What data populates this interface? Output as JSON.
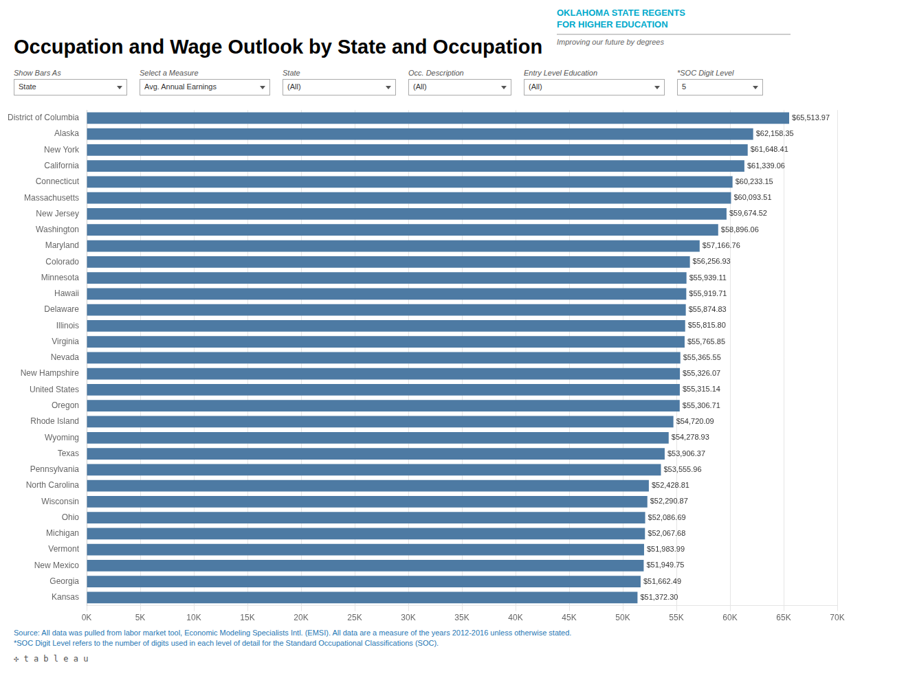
{
  "chart_data": {
    "type": "bar",
    "orientation": "horizontal",
    "title": "Occupation and Wage Outlook by State and Occupation",
    "categories": [
      "District of Columbia",
      "Alaska",
      "New York",
      "California",
      "Connecticut",
      "Massachusetts",
      "New Jersey",
      "Washington",
      "Maryland",
      "Colorado",
      "Minnesota",
      "Hawaii",
      "Delaware",
      "Illinois",
      "Virginia",
      "Nevada",
      "New Hampshire",
      "United States",
      "Oregon",
      "Rhode Island",
      "Wyoming",
      "Texas",
      "Pennsylvania",
      "North Carolina",
      "Wisconsin",
      "Ohio",
      "Michigan",
      "Vermont",
      "New Mexico",
      "Georgia",
      "Kansas"
    ],
    "values": [
      65513.97,
      62158.35,
      61648.41,
      61339.06,
      60233.15,
      60093.51,
      59674.52,
      58896.06,
      57166.76,
      56256.93,
      55939.11,
      55919.71,
      55874.83,
      55815.8,
      55765.85,
      55365.55,
      55326.07,
      55315.14,
      55306.71,
      54720.09,
      54278.93,
      53906.37,
      53555.96,
      52428.81,
      52290.87,
      52086.69,
      52067.68,
      51983.99,
      51949.75,
      51662.49,
      51372.3
    ],
    "value_labels": [
      "$65,513.97",
      "$62,158.35",
      "$61,648.41",
      "$61,339.06",
      "$60,233.15",
      "$60,093.51",
      "$59,674.52",
      "$58,896.06",
      "$57,166.76",
      "$56,256.93",
      "$55,939.11",
      "$55,919.71",
      "$55,874.83",
      "$55,815.80",
      "$55,765.85",
      "$55,365.55",
      "$55,326.07",
      "$55,315.14",
      "$55,306.71",
      "$54,720.09",
      "$54,278.93",
      "$53,906.37",
      "$53,555.96",
      "$52,428.81",
      "$52,290.87",
      "$52,086.69",
      "$52,067.68",
      "$51,983.99",
      "$51,949.75",
      "$51,662.49",
      "$51,372.30"
    ],
    "data_labels": true,
    "color": "#4d7aa3",
    "xlim": [
      0,
      70000
    ],
    "xticks": [
      {
        "value": 0,
        "label": "0K"
      },
      {
        "value": 5000,
        "label": "5K"
      },
      {
        "value": 10000,
        "label": "10K"
      },
      {
        "value": 15000,
        "label": "15K"
      },
      {
        "value": 20000,
        "label": "20K"
      },
      {
        "value": 25000,
        "label": "25K"
      },
      {
        "value": 30000,
        "label": "30K"
      },
      {
        "value": 35000,
        "label": "35K"
      },
      {
        "value": 40000,
        "label": "40K"
      },
      {
        "value": 45000,
        "label": "45K"
      },
      {
        "value": 50000,
        "label": "50K"
      },
      {
        "value": 55000,
        "label": "55K"
      },
      {
        "value": 60000,
        "label": "60K"
      },
      {
        "value": 65000,
        "label": "65K"
      },
      {
        "value": 70000,
        "label": "70K"
      }
    ],
    "grid": true,
    "annotations": [
      "OKLAHOMA STATE REGENTS",
      "FOR HIGHER EDUCATION",
      "Improving our future by degrees",
      "Show Bars As",
      "State",
      "Select a Measure",
      "Avg. Annual Earnings",
      "State",
      "(All)",
      "Occ. Description",
      "(All)",
      "Entry Level Education",
      "(All)",
      "*SOC Digit Level",
      "5",
      "Source: All data was pulled from labor market tool, Economic Modeling Specialists Intl. (EMSI). All data are a measure of the years 2012-2016 unless otherwise stated.",
      "*SOC Digit Level refers to the number of digits used in each level of detail for the Standard Occupational Classifications (SOC).",
      "✣ t a b l e a u"
    ]
  }
}
